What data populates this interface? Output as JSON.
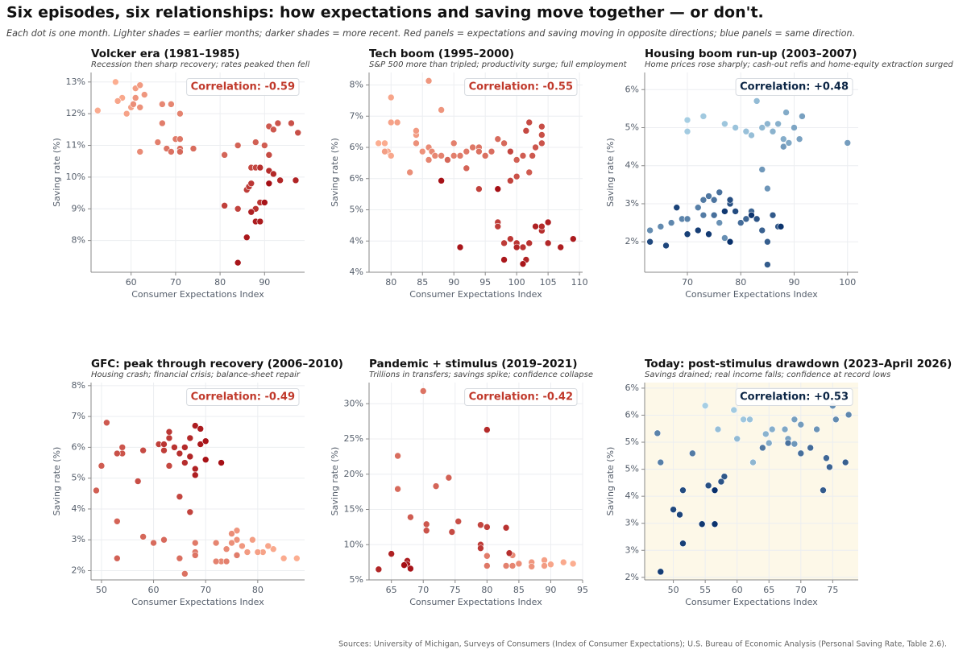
{
  "header": {
    "title": "Six episodes, six relationships: how expectations and saving move together — or don't.",
    "subtitle": "Each dot is one month. Lighter shades = earlier months; darker shades = more recent. Red panels = expectations and saving moving in opposite directions; blue panels = same direction."
  },
  "footer": {
    "source": "Sources: University of Michigan, Surveys of Consumers (Index of Consumer Expectations); U.S. Bureau of Economic Analysis (Personal Saving Rate, Table 2.6)."
  },
  "chart_data": [
    {
      "type": "scatter",
      "title": "Volcker era (1981–1985)",
      "subtitle": "Recession then sharp recovery; rates peaked then fell",
      "xlabel": "Consumer Expectations Index",
      "ylabel": "Saving rate (%)",
      "annotation": "Correlation: -0.59",
      "annotation_color": "#c0392b",
      "color_range": [
        "#fcae91",
        "#a50f15"
      ],
      "grid": true,
      "xlim": [
        51,
        99
      ],
      "xticks": [
        60,
        70,
        80,
        90
      ],
      "ylim": [
        7.0,
        13.3
      ],
      "yticks": [
        {
          "value": 8,
          "label": "8%"
        },
        {
          "value": 9,
          "label": "9%"
        },
        {
          "value": 10,
          "label": "10%"
        },
        {
          "value": 11,
          "label": "11%"
        },
        {
          "value": 12,
          "label": "12%"
        },
        {
          "value": 13,
          "label": "13%"
        }
      ],
      "x": [
        56.5,
        52.5,
        58,
        57,
        59,
        60,
        61,
        62,
        63,
        61,
        62,
        60.5,
        62,
        67,
        69,
        71,
        66,
        67,
        70,
        71,
        68,
        69,
        71,
        74,
        71,
        81,
        84,
        88,
        90,
        91,
        92,
        93,
        96,
        97.5,
        91,
        87,
        88,
        84,
        81,
        86,
        86.5,
        87,
        89,
        88,
        89,
        91,
        92,
        93.5,
        97,
        87,
        88,
        89,
        86,
        84,
        90,
        91
      ],
      "y": [
        13,
        12.1,
        12.5,
        12.4,
        12,
        12.2,
        12.8,
        12.9,
        12.6,
        12.5,
        12.2,
        12.3,
        10.8,
        12.3,
        12.3,
        12,
        11.1,
        11.7,
        11.2,
        11.2,
        10.9,
        10.8,
        10.9,
        10.9,
        10.8,
        10.7,
        11,
        11.1,
        11,
        11.6,
        11.5,
        11.7,
        11.7,
        11.4,
        10.7,
        10.3,
        10.3,
        9,
        9.1,
        9.6,
        9.7,
        9.8,
        9.2,
        9,
        10.3,
        10.2,
        10.1,
        9.9,
        9.9,
        8.9,
        8.6,
        8.6,
        8.1,
        7.3,
        9.2,
        9.8
      ]
    },
    {
      "type": "scatter",
      "title": "Tech boom (1995–2000)",
      "subtitle": "S&P 500 more than tripled; productivity surge; full employment",
      "xlabel": "Consumer Expectations Index",
      "ylabel": "Saving rate (%)",
      "annotation": "Correlation: -0.55",
      "annotation_color": "#c0392b",
      "color_range": [
        "#fcae91",
        "#a50f15"
      ],
      "grid": true,
      "xlim": [
        76.5,
        110.5
      ],
      "xticks": [
        80,
        85,
        90,
        95,
        100,
        105,
        110
      ],
      "ylim": [
        3.5,
        8.3
      ],
      "yticks": [
        {
          "value": 3.5,
          "label": "4%"
        },
        {
          "value": 4.25,
          "label": "4%"
        },
        {
          "value": 5,
          "label": "5%"
        },
        {
          "value": 5.75,
          "label": "6%"
        },
        {
          "value": 6.5,
          "label": "6%"
        },
        {
          "value": 7.25,
          "label": "7%"
        },
        {
          "value": 8,
          "label": "8%"
        }
      ],
      "x": [
        78,
        79,
        79.5,
        80,
        80,
        80,
        81,
        79,
        84,
        84,
        86,
        88,
        85,
        84,
        83,
        86,
        86.5,
        87,
        86,
        88,
        90,
        90,
        91,
        92,
        93,
        94,
        94,
        95,
        96,
        97,
        98,
        89,
        92,
        99,
        100,
        101,
        102,
        102.5,
        103,
        104,
        100,
        104,
        104,
        102,
        101.5,
        99,
        99,
        94,
        97,
        97,
        98,
        99,
        100,
        101,
        102,
        103,
        104,
        104,
        105,
        100,
        101.5,
        103,
        105,
        107,
        109,
        98,
        101,
        91,
        88,
        97
      ],
      "y": [
        6.6,
        6.6,
        6.4,
        6.3,
        7.7,
        7.1,
        7.1,
        6.4,
        6.8,
        6.9,
        8.1,
        7.4,
        6.4,
        6.6,
        5.9,
        6.5,
        6.4,
        6.3,
        6.2,
        6.3,
        6.6,
        6.3,
        6.3,
        6.4,
        6.5,
        6.5,
        6.4,
        6.3,
        6.4,
        6.7,
        6.6,
        6.2,
        6.0,
        6.4,
        6.2,
        6.3,
        5.9,
        6.3,
        6.5,
        6.6,
        5.8,
        6.8,
        7.0,
        7.1,
        6.9,
        6.4,
        5.7,
        5.5,
        4.7,
        4.6,
        4.2,
        4.3,
        4.2,
        4.1,
        4.2,
        4.6,
        4.5,
        4.6,
        4.2,
        4.1,
        3.8,
        4.6,
        4.7,
        4.1,
        4.3,
        3.8,
        3.7,
        4.1,
        5.7,
        5.5
      ]
    },
    {
      "type": "scatter",
      "title": "Housing boom run-up (2003–2007)",
      "subtitle": "Home prices rose sharply; cash-out refis and home-equity extraction surged",
      "xlabel": "Consumer Expectations Index",
      "ylabel": "Saving rate (%)",
      "annotation": "Correlation: +0.48",
      "annotation_color": "#0b2545",
      "color_range": [
        "#a6cee3",
        "#08306b"
      ],
      "grid": true,
      "xlim": [
        62,
        102
      ],
      "xticks": [
        70,
        80,
        90,
        100
      ],
      "ylim": [
        1.2,
        6.45
      ],
      "yticks": [
        {
          "value": 2,
          "label": "2%"
        },
        {
          "value": 3,
          "label": "3%"
        },
        {
          "value": 4,
          "label": "4%"
        },
        {
          "value": 5,
          "label": "5%"
        },
        {
          "value": 6,
          "label": "6%"
        }
      ],
      "x": [
        70,
        70,
        73,
        77,
        79,
        81,
        82,
        83,
        84,
        85,
        86,
        87,
        88,
        88.5,
        89,
        90,
        91,
        91.5,
        100,
        88,
        84,
        85,
        76,
        77,
        63,
        65,
        67,
        69,
        70,
        72,
        73,
        73,
        74,
        75,
        76,
        75,
        80,
        81,
        82,
        81,
        84,
        85,
        85,
        86,
        87,
        83,
        78,
        78,
        79,
        63,
        66,
        68,
        70,
        72,
        74,
        77,
        82,
        87.5,
        78
      ],
      "y": [
        5.2,
        4.9,
        5.3,
        5.1,
        5,
        4.9,
        4.8,
        5.7,
        5,
        5.1,
        4.9,
        5.1,
        4.7,
        5.4,
        4.6,
        5,
        4.7,
        5.3,
        4.6,
        4.5,
        3.9,
        3.4,
        2.5,
        2.1,
        2.3,
        2.4,
        2.5,
        2.6,
        2.6,
        2.9,
        2.7,
        3.1,
        3.2,
        3.1,
        3.3,
        2.7,
        2.5,
        2.6,
        2.8,
        2.6,
        2.3,
        2,
        1.4,
        2.7,
        2.4,
        2.6,
        3,
        3.1,
        2.8,
        2,
        1.9,
        2.9,
        2.2,
        2.3,
        2.2,
        2.8,
        2.7,
        2.4,
        2
      ]
    },
    {
      "type": "scatter",
      "title": "GFC: peak through recovery (2006–2010)",
      "subtitle": "Housing crash; financial crisis; balance-sheet repair",
      "xlabel": "Consumer Expectations Index",
      "ylabel": "Saving rate (%)",
      "annotation": "Correlation: -0.49",
      "annotation_color": "#c0392b",
      "color_range": [
        "#fcae91",
        "#a50f15"
      ],
      "grid": true,
      "xlim": [
        48,
        89
      ],
      "xticks": [
        50,
        60,
        70,
        80
      ],
      "ylim": [
        1.7,
        8.1
      ],
      "yticks": [
        {
          "value": 2,
          "label": "2%"
        },
        {
          "value": 3,
          "label": "3%"
        },
        {
          "value": 4,
          "label": "4%"
        },
        {
          "value": 5,
          "label": "5%"
        },
        {
          "value": 6,
          "label": "6%"
        },
        {
          "value": 7,
          "label": "7%"
        },
        {
          "value": 8,
          "label": "8%"
        }
      ],
      "x": [
        87.5,
        85,
        83,
        82,
        81,
        80,
        79,
        78,
        77,
        76,
        76,
        75,
        75,
        74,
        73,
        72,
        72,
        74,
        76,
        68,
        68,
        68,
        66,
        65,
        60,
        62,
        58,
        53,
        53,
        49,
        50,
        51,
        54,
        54,
        53,
        57,
        58,
        63,
        65,
        67,
        61,
        62,
        63,
        63,
        62,
        64,
        65,
        66,
        66,
        67,
        67,
        68,
        68,
        68,
        69,
        69,
        70,
        70,
        73
      ],
      "y": [
        2.4,
        2.4,
        2.7,
        2.8,
        2.6,
        2.6,
        3,
        2.6,
        2.8,
        3.3,
        3,
        2.9,
        3.2,
        2.7,
        2.3,
        2.9,
        2.3,
        2.3,
        2.5,
        2.9,
        2.6,
        2.5,
        1.9,
        2.4,
        2.9,
        3,
        3.1,
        3.6,
        2.4,
        4.6,
        5.4,
        6.8,
        6,
        5.8,
        5.8,
        4.9,
        5.9,
        5.4,
        4.4,
        3.9,
        6.1,
        5.9,
        6.3,
        6.5,
        6.1,
        6,
        5.8,
        5.5,
        6,
        6.3,
        5.7,
        5.3,
        5.1,
        6.7,
        6.6,
        6.1,
        6.2,
        5.6,
        5.5
      ]
    },
    {
      "type": "scatter",
      "title": "Pandemic + stimulus (2019–2021)",
      "subtitle": "Trillions in transfers; savings spike; confidence collapse",
      "xlabel": "Consumer Expectations Index",
      "ylabel": "Saving rate (%)",
      "annotation": "Correlation: -0.42",
      "annotation_color": "#c0392b",
      "color_range": [
        "#fcae91",
        "#a50f15"
      ],
      "grid": true,
      "xlim": [
        61.5,
        95
      ],
      "xticks": [
        65,
        70,
        75,
        80,
        85,
        90,
        95
      ],
      "ylim": [
        5,
        33
      ],
      "yticks": [
        {
          "value": 5,
          "label": "5%"
        },
        {
          "value": 10,
          "label": "10%"
        },
        {
          "value": 15,
          "label": "15%"
        },
        {
          "value": 20,
          "label": "20%"
        },
        {
          "value": 25,
          "label": "25%"
        },
        {
          "value": 30,
          "label": "30%"
        }
      ],
      "x": [
        93.5,
        92,
        90,
        89,
        89,
        87,
        87,
        85,
        84,
        84,
        83,
        80,
        80,
        70,
        66,
        66,
        72,
        74,
        68,
        70.5,
        70.5,
        75.5,
        74.5,
        79,
        80,
        79,
        79,
        83,
        83.5,
        80,
        63,
        65,
        67.5,
        67.5,
        68,
        67
      ],
      "y": [
        7.3,
        7.5,
        7.2,
        7.8,
        7,
        7.5,
        6.9,
        7.3,
        8.5,
        7,
        7,
        8.4,
        7,
        31.8,
        22.6,
        17.9,
        18.3,
        19.5,
        13.9,
        12.9,
        12,
        13.3,
        11.8,
        12.8,
        12.5,
        10,
        9.5,
        12.4,
        8.8,
        26.3,
        6.5,
        8.7,
        7.7,
        7.2,
        6.6,
        7.1
      ]
    },
    {
      "type": "scatter",
      "title": "Today: post-stimulus drawdown (2023–April 2026)",
      "subtitle": "Savings drained; real income falls; confidence at record lows",
      "xlabel": "Consumer Expectations Index",
      "ylabel": "Saving rate (%)",
      "annotation": "Correlation: +0.53",
      "annotation_color": "#0b2545",
      "color_range": [
        "#a6cee3",
        "#08306b"
      ],
      "grid": true,
      "background": "#fdf8e8",
      "xlim": [
        45.5,
        79
      ],
      "xticks": [
        50,
        55,
        60,
        65,
        70,
        75
      ],
      "ylim": [
        1.94,
        6.54
      ],
      "yticks": [
        {
          "value": 2,
          "label": "2%"
        },
        {
          "value": 2.63,
          "label": "3%"
        },
        {
          "value": 3.26,
          "label": "3%"
        },
        {
          "value": 3.89,
          "label": "4%"
        },
        {
          "value": 4.52,
          "label": "5%"
        },
        {
          "value": 5.15,
          "label": "5%"
        },
        {
          "value": 5.78,
          "label": "6%"
        },
        {
          "value": 6.41,
          "label": "6%"
        }
      ],
      "x": [
        55,
        59.5,
        61,
        62,
        57,
        60,
        62.5,
        64.5,
        65.5,
        65,
        67.5,
        68,
        69,
        70,
        69,
        72.5,
        75,
        75.5,
        77.5,
        47.5,
        48,
        53,
        64,
        68,
        70,
        71.5,
        74,
        74.5,
        77,
        73.5,
        58,
        57.5,
        55.5,
        51.5,
        50,
        51,
        51.5,
        48,
        54.5,
        56.5,
        56.5
      ],
      "y": [
        6,
        5.9,
        5.68,
        5.68,
        5.45,
        5.23,
        4.68,
        5.34,
        5.45,
        5.13,
        5.45,
        5.23,
        5.68,
        5.56,
        5.11,
        5.45,
        6,
        5.68,
        5.79,
        5.36,
        4.68,
        4.89,
        5.02,
        5.13,
        4.89,
        5.02,
        4.78,
        4.57,
        4.68,
        4.03,
        4.35,
        4.23,
        4.14,
        4.03,
        3.58,
        3.46,
        2.79,
        2.13,
        3.24,
        3.24,
        4.03
      ]
    }
  ]
}
